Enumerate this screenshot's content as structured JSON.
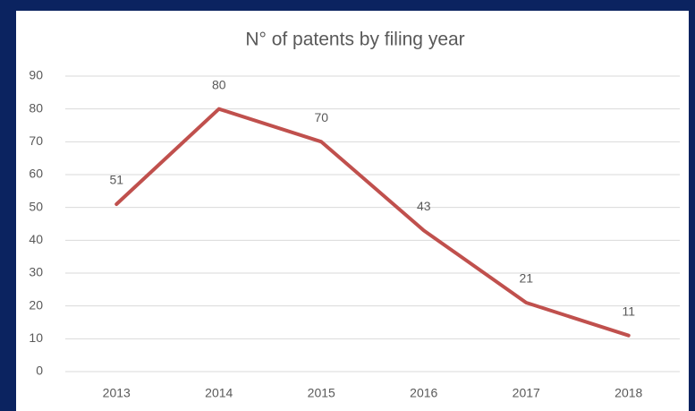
{
  "chart_data": {
    "type": "line",
    "title": "N° of patents by filing year",
    "categories": [
      "2013",
      "2014",
      "2015",
      "2016",
      "2017",
      "2018"
    ],
    "series": [
      {
        "name": "N° of patents",
        "color": "#c0504d",
        "values": [
          51,
          80,
          70,
          43,
          21,
          11
        ]
      }
    ],
    "ylim": [
      0,
      90
    ],
    "yticks": [
      0,
      10,
      20,
      30,
      40,
      50,
      60,
      70,
      80,
      90
    ],
    "grid": true
  }
}
